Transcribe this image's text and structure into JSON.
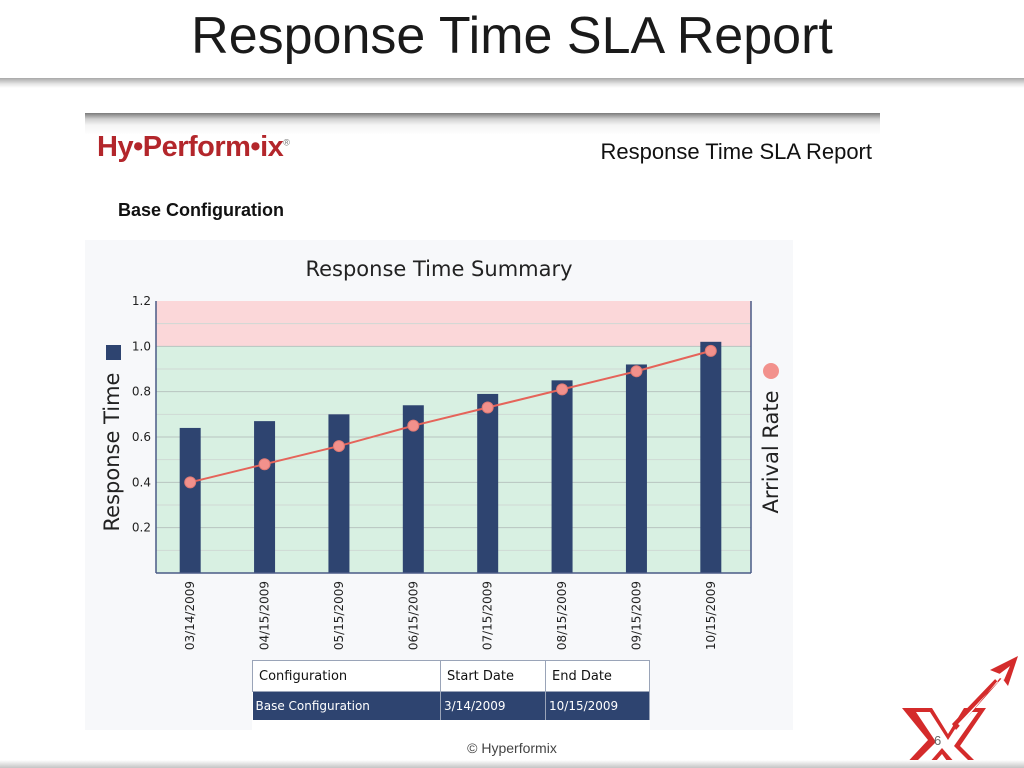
{
  "slide": {
    "title": "Response Time SLA Report",
    "copyright": "© Hyperformix",
    "page_number": "6"
  },
  "report_header": {
    "logo_text": "Hy•Perform•ix",
    "title": "Response Time SLA Report"
  },
  "section_heading": "Base Configuration",
  "chart_data": {
    "type": "bar",
    "title": "Response Time Summary",
    "ylabel": "Response Time",
    "y2label": "Arrival Rate",
    "ylim": [
      0,
      1.2
    ],
    "yticks": [
      "0.2",
      "0.4",
      "0.6",
      "0.8",
      "1.0",
      "1.2"
    ],
    "categories": [
      "03/14/2009",
      "04/15/2009",
      "05/15/2009",
      "06/15/2009",
      "07/15/2009",
      "08/15/2009",
      "09/15/2009",
      "10/15/2009"
    ],
    "series": [
      {
        "type": "bar",
        "values": [
          0.64,
          0.67,
          0.7,
          0.74,
          0.79,
          0.85,
          0.92,
          1.02
        ]
      },
      {
        "type": "line",
        "values": [
          0.4,
          0.48,
          0.56,
          0.65,
          0.73,
          0.81,
          0.89,
          0.98
        ]
      }
    ],
    "bands": [
      {
        "from": 0,
        "to": 1.0,
        "color": "#d8f0e2"
      },
      {
        "from": 1.0,
        "to": 1.2,
        "color": "#fbd7d9"
      }
    ],
    "colors": {
      "bar": "#2e4470",
      "line": "#e5645a",
      "marker": "#f2918c"
    },
    "grid": true
  },
  "table": {
    "headers": [
      "Configuration",
      "Start Date",
      "End Date"
    ],
    "rows": [
      [
        "Base Configuration",
        "3/14/2009",
        "10/15/2009"
      ]
    ]
  },
  "colors": {
    "brand": "#b3262b",
    "accent": "#2e4470"
  },
  "icons": {
    "corner": "hyperformix-x-arrow-icon"
  }
}
